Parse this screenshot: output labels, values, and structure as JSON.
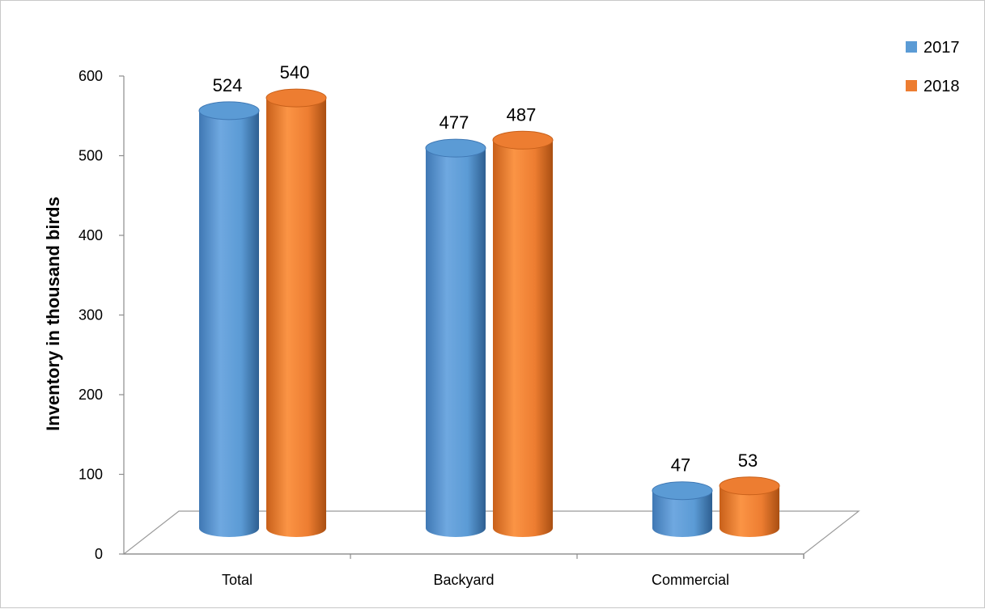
{
  "chart_data": {
    "type": "bar",
    "style": "3d-cylinder",
    "title": "",
    "xlabel": "",
    "ylabel": "Inventory in thousand birds",
    "ylim": [
      0,
      600
    ],
    "yticks": [
      "0",
      "100",
      "200",
      "300",
      "400",
      "500",
      "600"
    ],
    "categories": [
      "Total",
      "Backyard",
      "Commercial"
    ],
    "series": [
      {
        "name": "2017",
        "color": "#5b9bd5",
        "values": [
          524,
          477,
          47
        ],
        "labels": [
          "524",
          "477",
          "47"
        ]
      },
      {
        "name": "2018",
        "color": "#ed7d31",
        "values": [
          540,
          487,
          53
        ],
        "labels": [
          "540",
          "487",
          "53"
        ]
      }
    ],
    "legend_position": "top-right",
    "grid": false
  }
}
